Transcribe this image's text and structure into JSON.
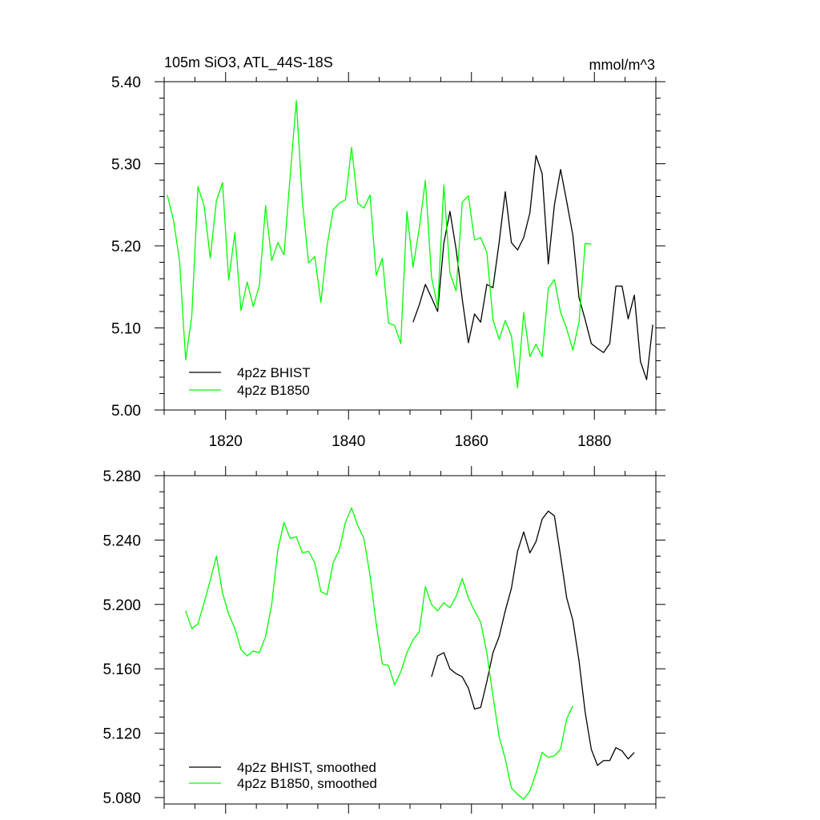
{
  "chart_data": [
    {
      "type": "line",
      "title_left": "105m SiO3, ATL_44S-18S",
      "title_right": "mmol/m^3",
      "xlim": [
        1810,
        1890
      ],
      "ylim": [
        5.0,
        5.4
      ],
      "xticks": [
        1820,
        1840,
        1860,
        1880
      ],
      "xtick_labels": [
        "1820",
        "1840",
        "1860",
        "1880"
      ],
      "yticks": [
        5.0,
        5.1,
        5.2,
        5.3,
        5.4
      ],
      "ytick_labels": [
        "5.00",
        "5.10",
        "5.20",
        "5.30",
        "5.40"
      ],
      "legend_position": "bottom-left",
      "series": [
        {
          "name": "4p2z BHIST",
          "color": "#000000",
          "x_start": 1850.5,
          "values": [
            5.107,
            5.128,
            5.153,
            5.137,
            5.12,
            5.203,
            5.242,
            5.196,
            5.135,
            5.082,
            5.117,
            5.107,
            5.153,
            5.149,
            5.204,
            5.266,
            5.204,
            5.195,
            5.21,
            5.24,
            5.31,
            5.288,
            5.178,
            5.25,
            5.293,
            5.254,
            5.213,
            5.137,
            5.11,
            5.081,
            5.075,
            5.07,
            5.081,
            5.151,
            5.151,
            5.111,
            5.14,
            5.059,
            5.037,
            5.104
          ]
        },
        {
          "name": "4p2z B1850",
          "color": "#00ff00",
          "x_start": 1810.5,
          "values": [
            5.262,
            5.232,
            5.182,
            5.061,
            5.115,
            5.272,
            5.249,
            5.185,
            5.255,
            5.277,
            5.158,
            5.216,
            5.121,
            5.156,
            5.126,
            5.152,
            5.249,
            5.182,
            5.204,
            5.189,
            5.285,
            5.377,
            5.254,
            5.179,
            5.187,
            5.131,
            5.2,
            5.244,
            5.252,
            5.256,
            5.32,
            5.252,
            5.246,
            5.262,
            5.164,
            5.185,
            5.106,
            5.103,
            5.081,
            5.242,
            5.174,
            5.221,
            5.28,
            5.162,
            5.125,
            5.274,
            5.167,
            5.145,
            5.253,
            5.261,
            5.207,
            5.21,
            5.192,
            5.11,
            5.086,
            5.109,
            5.09,
            5.027,
            5.119,
            5.065,
            5.08,
            5.065,
            5.148,
            5.159,
            5.119,
            5.099,
            5.073,
            5.107,
            5.203,
            5.202
          ]
        }
      ]
    },
    {
      "type": "line",
      "xlim": [
        1810,
        1890
      ],
      "ylim": [
        5.076,
        5.28
      ],
      "xticks": [
        1820,
        1840,
        1860,
        1880
      ],
      "yticks": [
        5.08,
        5.12,
        5.16,
        5.2,
        5.24,
        5.28
      ],
      "ytick_labels": [
        "5.080",
        "5.120",
        "5.160",
        "5.200",
        "5.240",
        "5.280"
      ],
      "legend_position": "bottom-left",
      "series": [
        {
          "name": "4p2z BHIST, smoothed",
          "color": "#000000",
          "x_start": 1853.5,
          "values": [
            5.155,
            5.168,
            5.17,
            5.16,
            5.157,
            5.155,
            5.148,
            5.135,
            5.136,
            5.152,
            5.17,
            5.18,
            5.196,
            5.21,
            5.233,
            5.245,
            5.232,
            5.239,
            5.253,
            5.258,
            5.255,
            5.23,
            5.204,
            5.19,
            5.165,
            5.133,
            5.11,
            5.1,
            5.103,
            5.103,
            5.111,
            5.109,
            5.104,
            5.108
          ]
        },
        {
          "name": "4p2z B1850, smoothed",
          "color": "#00ff00",
          "x_start": 1813.5,
          "values": [
            5.196,
            5.185,
            5.188,
            5.201,
            5.215,
            5.23,
            5.207,
            5.194,
            5.185,
            5.172,
            5.168,
            5.171,
            5.17,
            5.18,
            5.2,
            5.234,
            5.251,
            5.241,
            5.242,
            5.232,
            5.233,
            5.226,
            5.208,
            5.206,
            5.226,
            5.234,
            5.251,
            5.26,
            5.249,
            5.241,
            5.218,
            5.188,
            5.163,
            5.162,
            5.15,
            5.158,
            5.17,
            5.178,
            5.183,
            5.211,
            5.2,
            5.196,
            5.201,
            5.198,
            5.205,
            5.216,
            5.204,
            5.196,
            5.189,
            5.17,
            5.143,
            5.118,
            5.104,
            5.086,
            5.082,
            5.079,
            5.084,
            5.095,
            5.108,
            5.105,
            5.106,
            5.11,
            5.129,
            5.137
          ]
        }
      ]
    }
  ]
}
